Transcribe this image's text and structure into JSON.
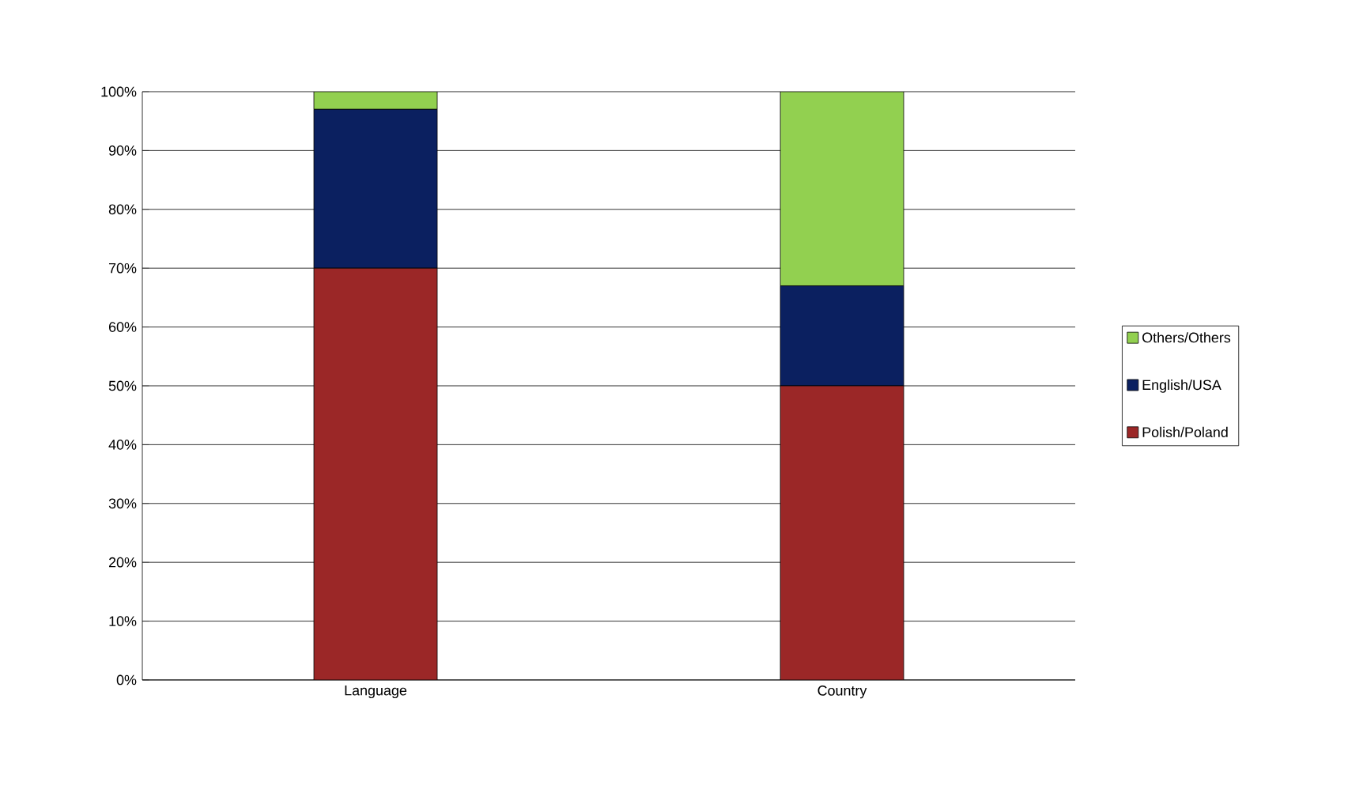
{
  "chart_data": {
    "type": "bar",
    "stacked": true,
    "categories": [
      "Language",
      "Country"
    ],
    "series": [
      {
        "name": "Polish/Poland",
        "color": "#9b2727",
        "values": [
          70,
          50
        ]
      },
      {
        "name": "English/USA",
        "color": "#0b2060",
        "values": [
          27,
          17
        ]
      },
      {
        "name": "Others/Others",
        "color": "#92d050",
        "values": [
          3,
          33
        ]
      }
    ],
    "ylim": [
      0,
      100
    ],
    "yticks": [
      {
        "value": 0,
        "label": "0%"
      },
      {
        "value": 10,
        "label": "10%"
      },
      {
        "value": 20,
        "label": "20%"
      },
      {
        "value": 30,
        "label": "30%"
      },
      {
        "value": 40,
        "label": "40%"
      },
      {
        "value": 50,
        "label": "50%"
      },
      {
        "value": 60,
        "label": "60%"
      },
      {
        "value": 70,
        "label": "70%"
      },
      {
        "value": 80,
        "label": "80%"
      },
      {
        "value": 90,
        "label": "90%"
      },
      {
        "value": 100,
        "label": "100%"
      }
    ],
    "grid": "y",
    "legend": "right"
  }
}
